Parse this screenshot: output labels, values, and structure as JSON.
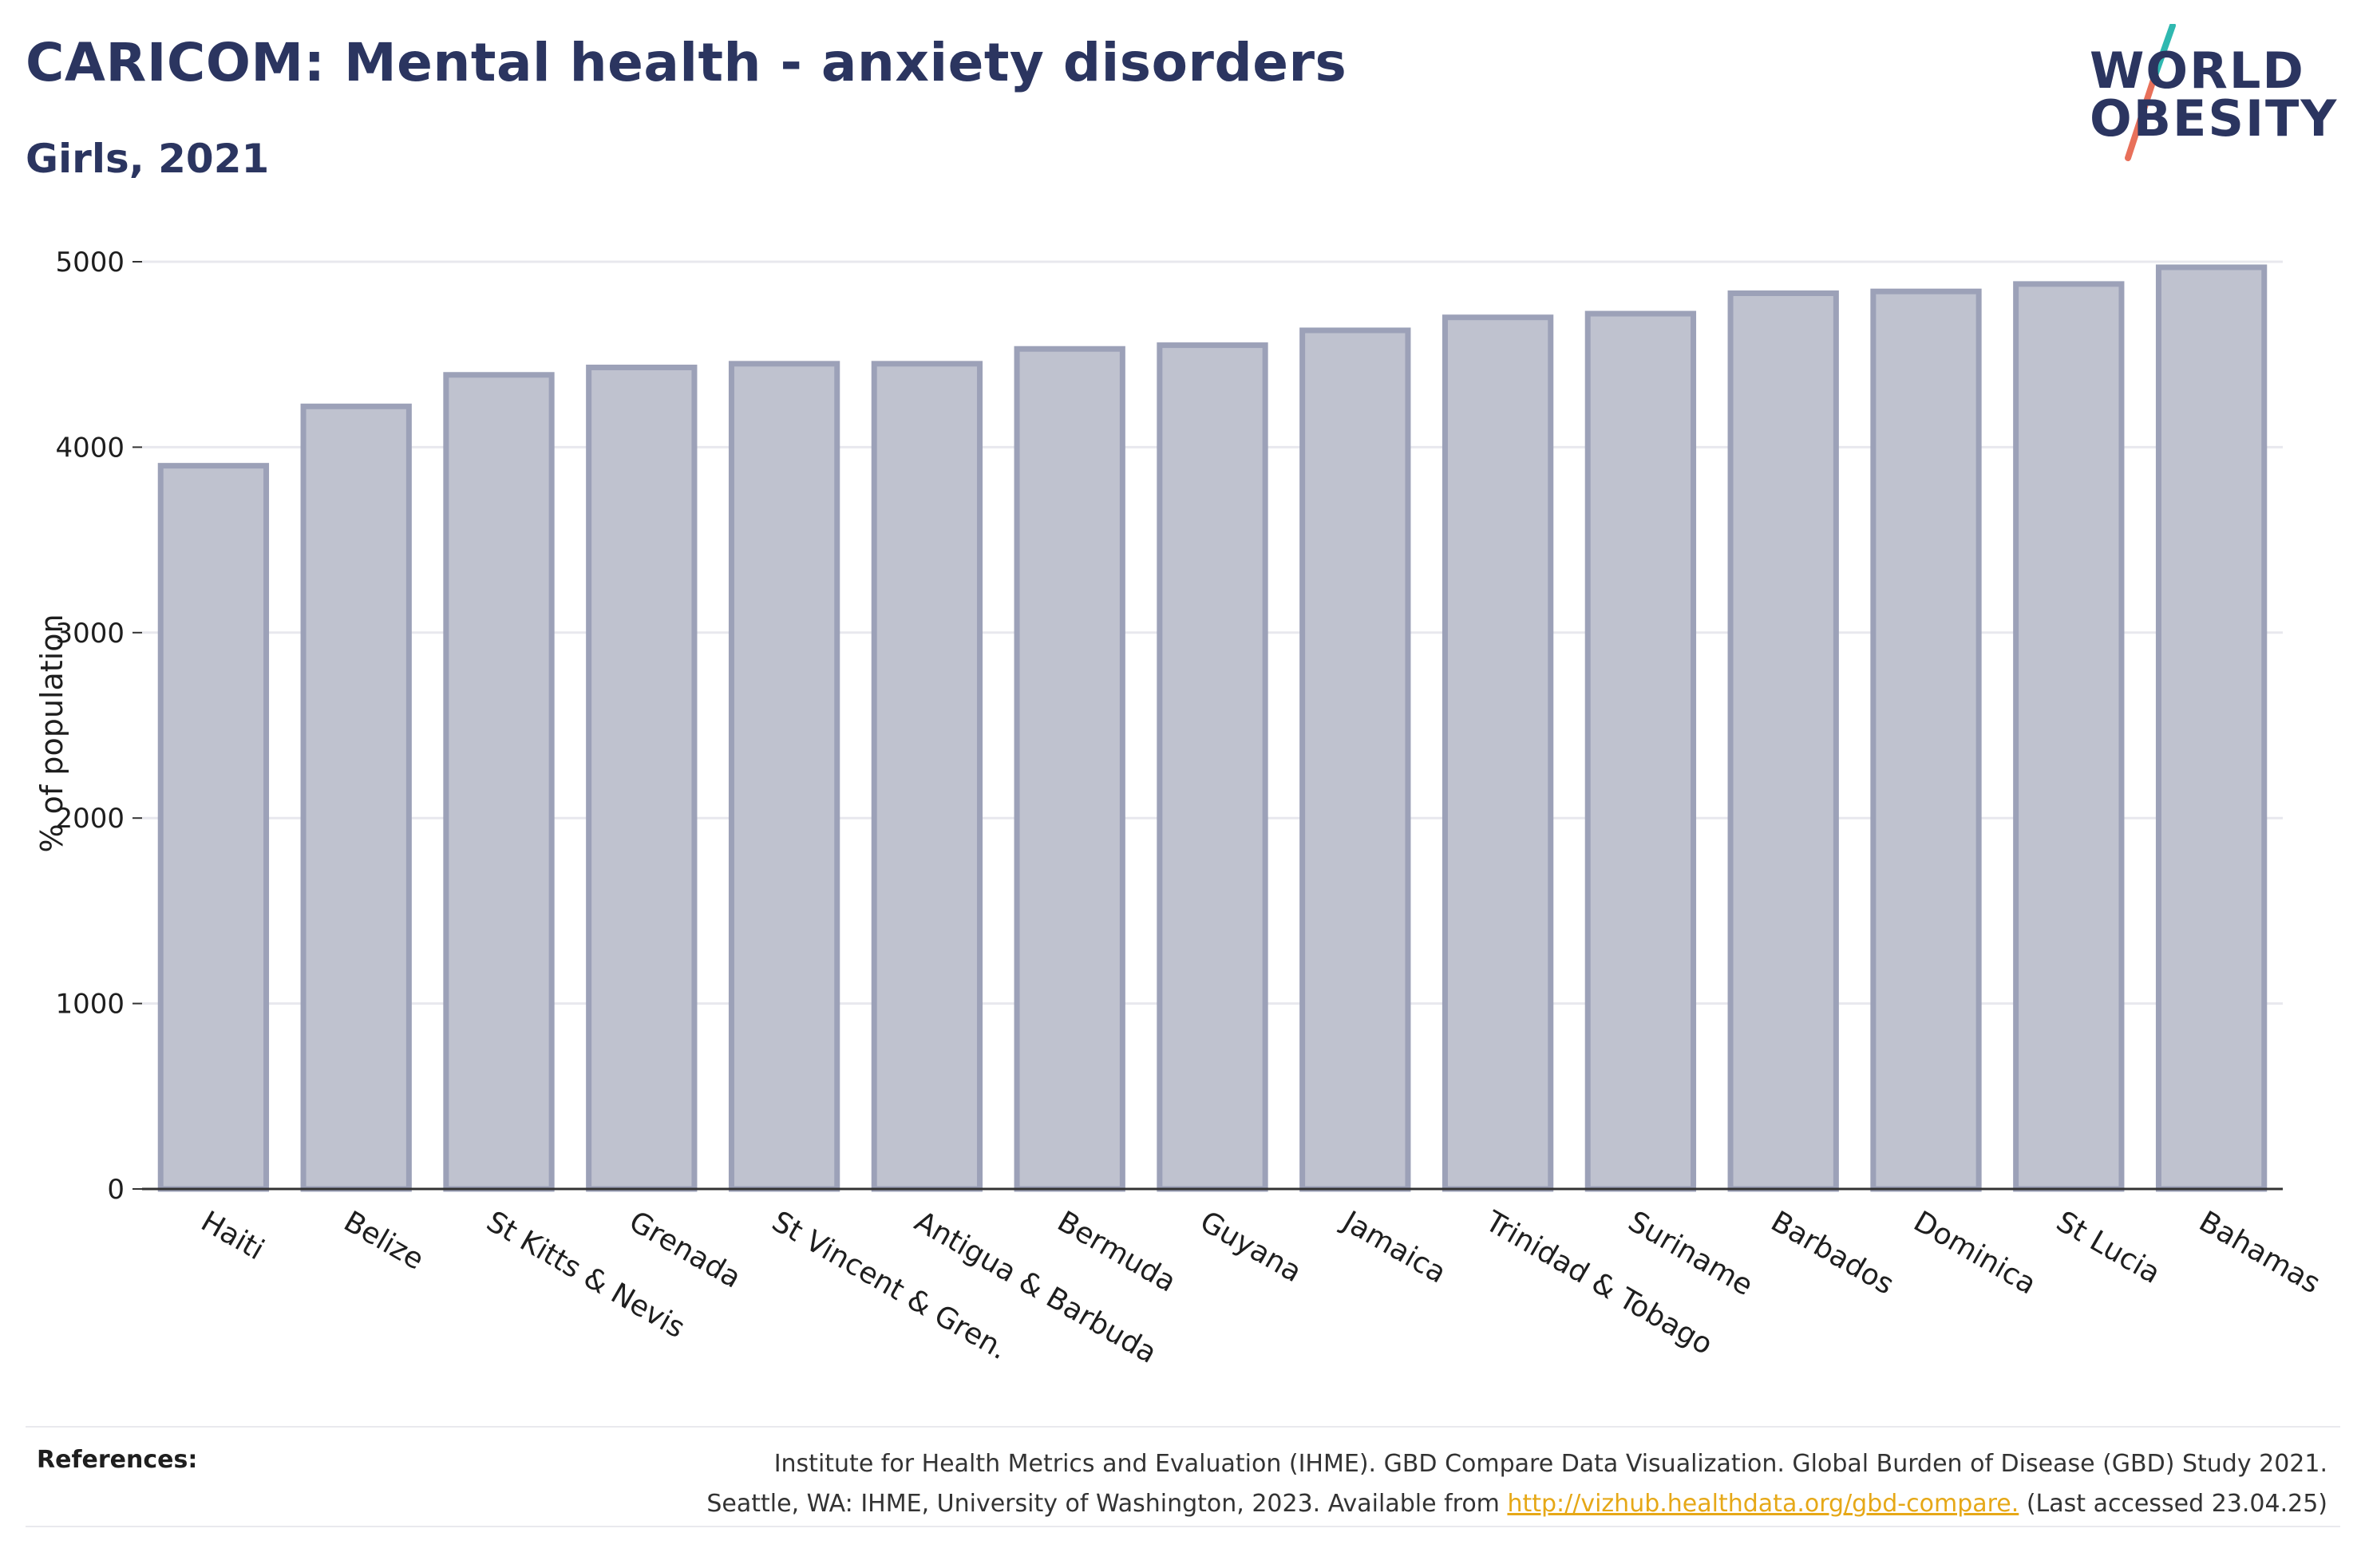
{
  "header": {
    "title": "CARICOM: Mental health - anxiety disorders",
    "subtitle": "Girls, 2021"
  },
  "logo": {
    "line1": "WORLD",
    "line2": "OBESITY",
    "colors": {
      "text": "#2b3560",
      "slash_top": "#2fb8b0",
      "slash_bottom": "#e8705a"
    }
  },
  "chart_data": {
    "type": "bar",
    "categories": [
      "Haiti",
      "Belize",
      "St Kitts & Nevis",
      "Grenada",
      "St Vincent & Gren.",
      "Antigua & Barbuda",
      "Bermuda",
      "Guyana",
      "Jamaica",
      "Trinidad & Tobago",
      "Suriname",
      "Barbados",
      "Dominica",
      "St Lucia",
      "Bahamas"
    ],
    "values": [
      3900,
      4220,
      4390,
      4430,
      4450,
      4450,
      4530,
      4550,
      4630,
      4700,
      4720,
      4830,
      4840,
      4880,
      4970
    ],
    "title": "CARICOM: Mental health - anxiety disorders",
    "subtitle": "Girls, 2021",
    "xlabel": "",
    "ylabel": "% of population",
    "ylim": [
      0,
      5000
    ],
    "yticks": [
      0,
      1000,
      2000,
      3000,
      4000,
      5000
    ],
    "grid": true,
    "legend": "none",
    "colors": {
      "bar_fill": "#bfc2cf",
      "bar_edge": "#9ca1b8",
      "axis": "#333333",
      "grid": "#e8e8ee"
    }
  },
  "references": {
    "label": "References:",
    "line1": "Institute for Health Metrics and Evaluation (IHME). GBD Compare Data Visualization. Global Burden of Disease (GBD) Study 2021.",
    "line2_prefix": "Seattle, WA: IHME, University of Washington, 2023. Available from ",
    "link_text": "http://vizhub.healthdata.org/gbd-compare.",
    "line2_suffix": " (Last accessed 23.04.25)"
  }
}
